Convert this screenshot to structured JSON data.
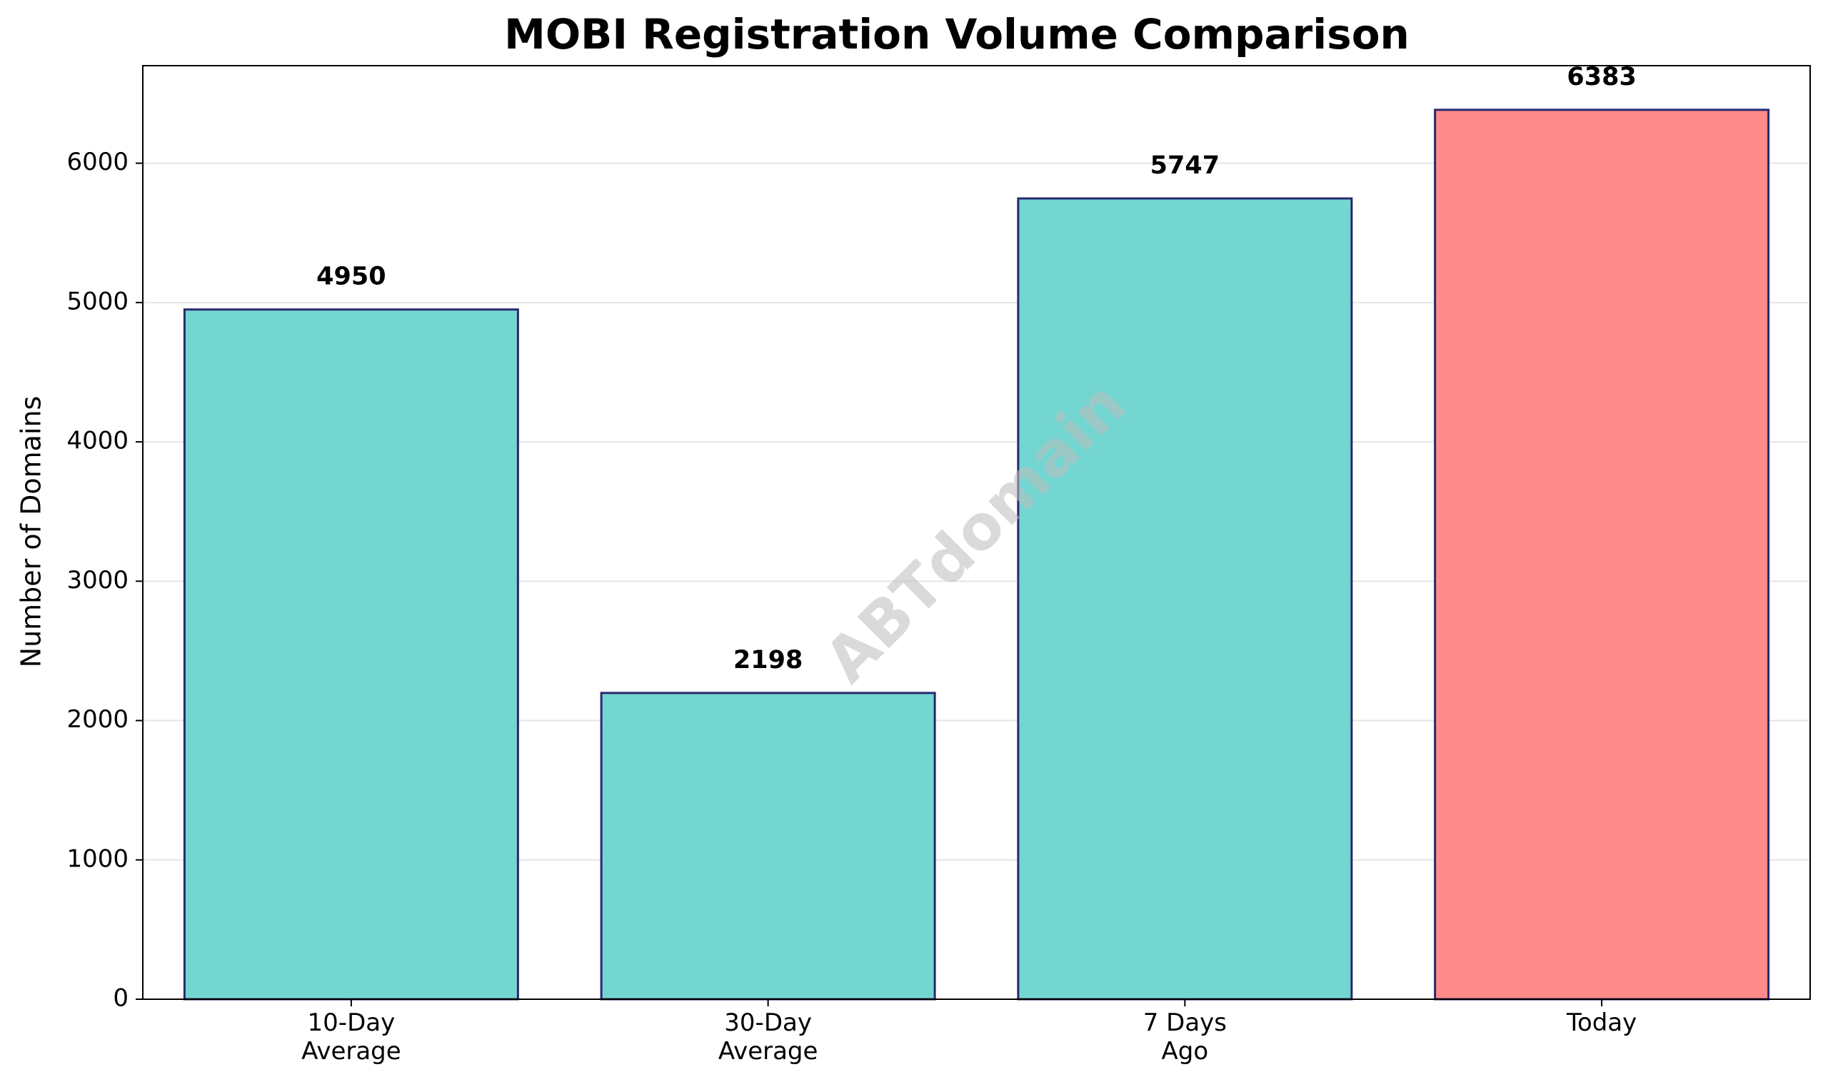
{
  "chart_data": {
    "type": "bar",
    "title": "MOBI Registration Volume Comparison",
    "xlabel": "",
    "ylabel": "Number of Domains",
    "categories": [
      [
        "10-Day",
        "Average"
      ],
      [
        "30-Day",
        "Average"
      ],
      [
        "7 Days",
        "Ago"
      ],
      [
        "Today"
      ]
    ],
    "values": [
      4950,
      2198,
      5747,
      6383
    ],
    "value_labels": [
      "4950",
      "2198",
      "5747",
      "6383"
    ],
    "ylim": [
      0,
      6700
    ],
    "yticks": [
      0,
      1000,
      2000,
      3000,
      4000,
      5000,
      6000
    ],
    "ytick_labels": [
      "0",
      "1000",
      "2000",
      "3000",
      "4000",
      "5000",
      "6000"
    ],
    "grid": "horizontal",
    "colors": {
      "default_bar": "#74d6d0",
      "highlight_bar": "#ff8a8a",
      "bar_edge": "#28286e",
      "grid": "#e5e5e5"
    },
    "highlight_index": 3,
    "watermark": "ABTdomain"
  }
}
